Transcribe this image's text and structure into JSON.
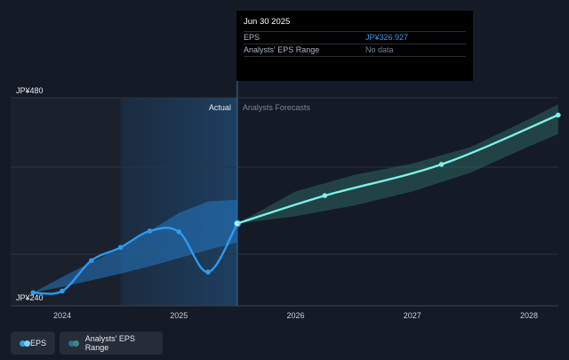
{
  "tooltip": {
    "date": "Jun 30 2025",
    "rows": [
      {
        "label": "EPS",
        "value": "JP¥326.927"
      },
      {
        "label": "Analysts' EPS Range",
        "value": "No data"
      }
    ]
  },
  "region_labels": {
    "actual": "Actual",
    "forecast": "Analysts Forecasts"
  },
  "legend": {
    "eps": "EPS",
    "range": "Analysts' EPS Range"
  },
  "colors": {
    "background": "#151b26",
    "eps_line": "#2d9bf0",
    "forecast_line": "#7ff0e6",
    "actual_range_fill": "#2578c4",
    "forecast_range_fill": "#2f6b66"
  },
  "chart_data": {
    "type": "line",
    "y_ticks": [
      {
        "value": 480,
        "label": "JP¥480"
      },
      {
        "value": 240,
        "label": "JP¥240"
      }
    ],
    "ylim": [
      240,
      480
    ],
    "x_ticks": [
      {
        "value": 2024,
        "label": "2024"
      },
      {
        "value": 2025,
        "label": "2025"
      },
      {
        "value": 2026,
        "label": "2026"
      },
      {
        "value": 2027,
        "label": "2027"
      },
      {
        "value": 2028,
        "label": "2028"
      }
    ],
    "xlim": [
      2023.75,
      2028.25
    ],
    "highlight_start": 2024.5,
    "actual_end": 2025.5,
    "series": [
      {
        "name": "EPS",
        "segment": "actual",
        "points": [
          [
            2023.75,
            243
          ],
          [
            2024.0,
            245
          ],
          [
            2024.25,
            282
          ],
          [
            2024.5,
            298
          ],
          [
            2024.75,
            318
          ],
          [
            2025.0,
            317
          ],
          [
            2025.25,
            268
          ],
          [
            2025.5,
            327
          ]
        ]
      },
      {
        "name": "EPS",
        "segment": "forecast",
        "points": [
          [
            2025.5,
            327
          ],
          [
            2026.25,
            361
          ],
          [
            2027.25,
            399
          ],
          [
            2028.25,
            459
          ]
        ]
      }
    ],
    "actual_range": {
      "x": [
        2023.75,
        2024.0,
        2024.25,
        2024.5,
        2024.75,
        2025.0,
        2025.25,
        2025.5
      ],
      "upper": [
        243,
        262,
        280,
        298,
        318,
        340,
        354,
        356
      ],
      "lower": [
        243,
        250,
        258,
        266,
        275,
        285,
        295,
        304
      ]
    },
    "forecast_range": {
      "x": [
        2025.5,
        2026.0,
        2026.5,
        2027.0,
        2027.5,
        2028.0,
        2028.25
      ],
      "upper": [
        327,
        366,
        386,
        400,
        420,
        454,
        472
      ],
      "lower": [
        327,
        336,
        349,
        366,
        389,
        421,
        436
      ]
    }
  }
}
